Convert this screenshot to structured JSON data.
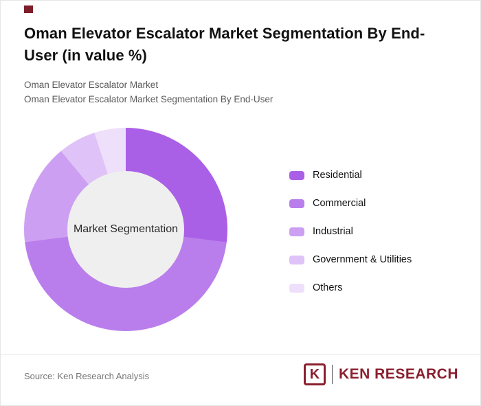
{
  "page": {
    "title": "Oman Elevator Escalator Market Segmentation By End-User (in value %)",
    "subtitle_line1": "Oman Elevator Escalator Market",
    "subtitle_line2": "Oman Elevator Escalator Market Segmentation By End-User"
  },
  "chart_data": {
    "type": "pie",
    "variant": "donut",
    "title": "Oman Elevator Escalator Market Segmentation By End-User (in value %)",
    "center_label": "Market Segmentation",
    "categories": [
      "Residential",
      "Commercial",
      "Industrial",
      "Government & Utilities",
      "Others"
    ],
    "values": [
      27,
      46,
      16,
      6,
      5
    ],
    "colors": [
      "#aa60e6",
      "#ba7eec",
      "#cd9ff2",
      "#dfc2f7",
      "#eedffb"
    ],
    "hole_color": "#efefef",
    "legend_position": "right",
    "data_labels": false,
    "start_angle_deg": 0,
    "direction": "clockwise"
  },
  "footer": {
    "source": "Source: Ken Research Analysis",
    "logo_monogram": "K",
    "logo_text": "KEN RESEARCH",
    "logo_color": "#8a1f2e"
  },
  "accent_color": "#7e1e2c"
}
